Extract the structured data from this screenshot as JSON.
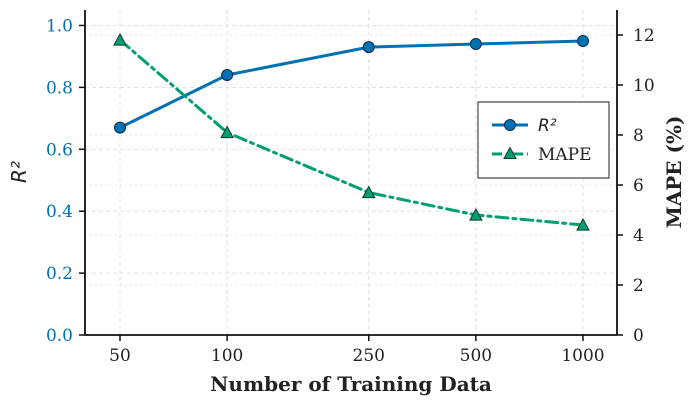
{
  "chart_data": {
    "type": "line",
    "x": [
      50,
      100,
      250,
      500,
      1000
    ],
    "xscale": "log",
    "xlabel": "Number of Training Data",
    "y_left": {
      "label": "R²",
      "lim": [
        0,
        1.05
      ],
      "ticks": [
        0.0,
        0.2,
        0.4,
        0.6,
        0.8,
        1.0
      ],
      "tick_labels": [
        "0.0",
        "0.2",
        "0.4",
        "0.6",
        "0.8",
        "1.0"
      ],
      "color": "#0072B2"
    },
    "y_right": {
      "label": "MAPE (%)",
      "lim": [
        0,
        13
      ],
      "ticks": [
        0,
        2,
        4,
        6,
        8,
        10,
        12
      ],
      "tick_labels": [
        "0",
        "2",
        "4",
        "6",
        "8",
        "10",
        "12"
      ],
      "color": "#222222"
    },
    "x_tick_labels": [
      "50",
      "100",
      "250",
      "500",
      "1000"
    ],
    "series": [
      {
        "name": "R²",
        "axis": "left",
        "values": [
          0.67,
          0.84,
          0.93,
          0.94,
          0.95
        ],
        "color": "#0072B2",
        "line_style": "solid",
        "marker": "circle"
      },
      {
        "name": "MAPE",
        "axis": "right",
        "values": [
          11.8,
          8.1,
          5.7,
          4.8,
          4.4
        ],
        "color": "#009E73",
        "line_style": "dashdot",
        "marker": "triangle"
      }
    ],
    "grid": true,
    "legend_position": "center-right"
  }
}
